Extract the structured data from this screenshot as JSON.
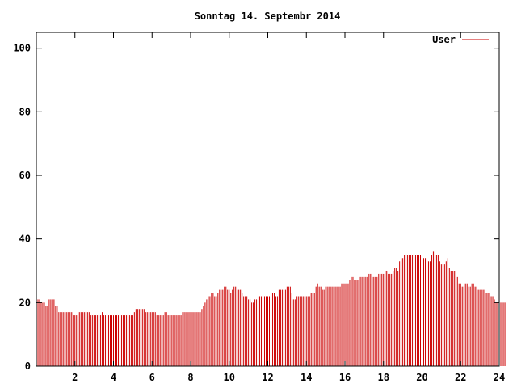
{
  "chart_data": {
    "type": "bar",
    "title": "Sonntag 14. Septembr 2014",
    "xlabel": "",
    "ylabel": "",
    "xlim": [
      0,
      24
    ],
    "ylim": [
      0,
      105
    ],
    "x_ticks": [
      2,
      4,
      6,
      8,
      10,
      12,
      14,
      16,
      18,
      20,
      22,
      24
    ],
    "y_ticks": [
      0,
      20,
      40,
      60,
      80,
      100
    ],
    "grid": false,
    "legend_position": "top-right",
    "series": [
      {
        "name": "User",
        "color": "#cc0000",
        "step_minutes": 5,
        "values": [
          21,
          21,
          21,
          20,
          20,
          20,
          19,
          19,
          21,
          21,
          21,
          21,
          19,
          19,
          17,
          17,
          17,
          17,
          17,
          17,
          17,
          17,
          17,
          16,
          16,
          16,
          17,
          17,
          17,
          17,
          17,
          17,
          17,
          17,
          16,
          16,
          16,
          16,
          16,
          16,
          16,
          17,
          16,
          16,
          16,
          16,
          16,
          16,
          16,
          16,
          16,
          16,
          16,
          16,
          16,
          16,
          16,
          16,
          16,
          16,
          16,
          17,
          18,
          18,
          18,
          18,
          18,
          18,
          17,
          17,
          17,
          17,
          17,
          17,
          17,
          16,
          16,
          16,
          16,
          16,
          17,
          17,
          16,
          16,
          16,
          16,
          16,
          16,
          16,
          16,
          16,
          17,
          17,
          17,
          17,
          17,
          17,
          17,
          17,
          17,
          17,
          17,
          17,
          18,
          19,
          20,
          21,
          22,
          22,
          23,
          23,
          22,
          22,
          23,
          24,
          24,
          24,
          25,
          25,
          24,
          24,
          23,
          24,
          25,
          25,
          24,
          24,
          24,
          23,
          22,
          22,
          22,
          21,
          21,
          20,
          20,
          21,
          21,
          22,
          22,
          22,
          22,
          22,
          22,
          22,
          22,
          22,
          23,
          23,
          22,
          22,
          24,
          24,
          24,
          24,
          24,
          25,
          25,
          25,
          23,
          21,
          21,
          22,
          22,
          22,
          22,
          22,
          22,
          22,
          22,
          22,
          23,
          23,
          23,
          25,
          26,
          25,
          25,
          24,
          24,
          25,
          25,
          25,
          25,
          25,
          25,
          25,
          25,
          25,
          25,
          26,
          26,
          26,
          26,
          26,
          27,
          28,
          28,
          27,
          27,
          27,
          28,
          28,
          28,
          28,
          28,
          28,
          29,
          29,
          28,
          28,
          28,
          28,
          29,
          29,
          29,
          29,
          30,
          30,
          29,
          29,
          29,
          30,
          31,
          31,
          30,
          33,
          34,
          34,
          35,
          35,
          35,
          35,
          35,
          35,
          35,
          35,
          35,
          35,
          35,
          34,
          34,
          34,
          34,
          33,
          33,
          35,
          36,
          36,
          35,
          35,
          33,
          32,
          32,
          32,
          33,
          34,
          31,
          30,
          30,
          30,
          30,
          28,
          26,
          26,
          25,
          25,
          26,
          26,
          25,
          25,
          26,
          26,
          25,
          25,
          24,
          24,
          24,
          24,
          24,
          23,
          23,
          23,
          22,
          22,
          21,
          20,
          20,
          20,
          20,
          20,
          20,
          20
        ]
      }
    ]
  }
}
